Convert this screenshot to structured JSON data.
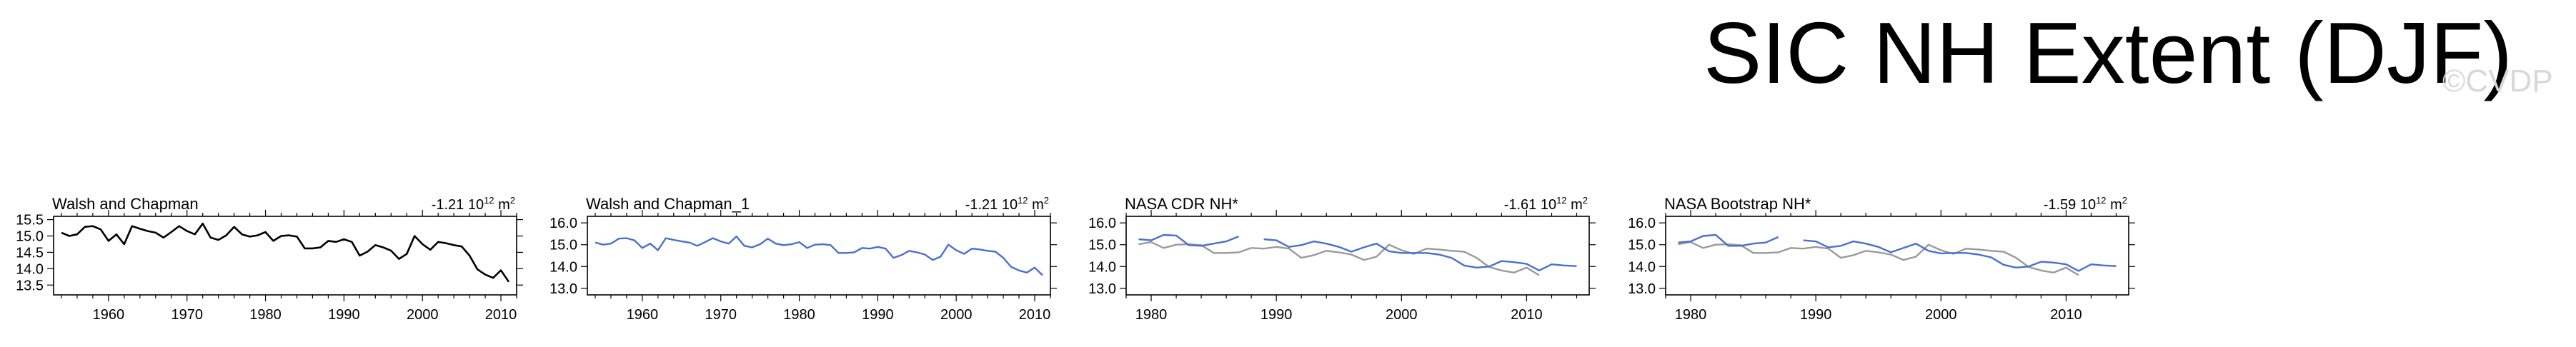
{
  "figure": {
    "title": "SIC NH Extent (DJF)",
    "watermark": "©CVDP"
  },
  "colors": {
    "black": "#000000",
    "blue": "#4a6fd0",
    "gray": "#9a9a9a",
    "watermark": "#d8d8d8"
  },
  "chart_data": [
    {
      "type": "line",
      "title": "Walsh and Chapman",
      "trend_value": "-1.21 10",
      "trend_exp": "12",
      "trend_units": "m",
      "trend_units_exp": "2",
      "xlim": [
        1953,
        2012
      ],
      "ylim": [
        13.2,
        15.6
      ],
      "xticks": [
        1960,
        1970,
        1980,
        1990,
        2000,
        2010
      ],
      "yticks": [
        "15.5",
        "15.0",
        "14.5",
        "14.0",
        "13.5"
      ],
      "ytick_values": [
        15.5,
        15.0,
        14.5,
        14.0,
        13.5
      ],
      "series": [
        {
          "name": "Walsh and Chapman",
          "color": "black",
          "x": [
            1954,
            1955,
            1956,
            1957,
            1958,
            1959,
            1960,
            1961,
            1962,
            1963,
            1964,
            1965,
            1966,
            1967,
            1968,
            1969,
            1970,
            1971,
            1972,
            1973,
            1974,
            1975,
            1976,
            1977,
            1978,
            1979,
            1980,
            1981,
            1982,
            1983,
            1984,
            1985,
            1986,
            1987,
            1988,
            1989,
            1990,
            1991,
            1992,
            1993,
            1994,
            1995,
            1996,
            1997,
            1998,
            1999,
            2000,
            2001,
            2002,
            2003,
            2004,
            2005,
            2006,
            2007,
            2008,
            2009,
            2010,
            2011
          ],
          "y": [
            15.1,
            15.0,
            15.05,
            15.28,
            15.3,
            15.2,
            14.85,
            15.05,
            14.75,
            15.3,
            15.22,
            15.15,
            15.1,
            14.95,
            15.12,
            15.3,
            15.15,
            15.05,
            15.38,
            14.95,
            14.88,
            15.02,
            15.28,
            15.05,
            14.98,
            15.02,
            15.12,
            14.85,
            15.0,
            15.02,
            14.98,
            14.62,
            14.62,
            14.65,
            14.85,
            14.82,
            14.9,
            14.82,
            14.4,
            14.52,
            14.72,
            14.65,
            14.55,
            14.3,
            14.45,
            15.0,
            14.75,
            14.58,
            14.82,
            14.78,
            14.72,
            14.68,
            14.4,
            13.98,
            13.82,
            13.72,
            13.95,
            13.6
          ]
        }
      ]
    },
    {
      "type": "line",
      "title": "Walsh and Chapman_1",
      "trend_value": "-1.21 10",
      "trend_exp": "12",
      "trend_units": "m",
      "trend_units_exp": "2",
      "xlim": [
        1953,
        2012
      ],
      "ylim": [
        12.7,
        16.3
      ],
      "xticks": [
        1960,
        1970,
        1980,
        1990,
        2000,
        2010
      ],
      "yticks": [
        "16.0",
        "15.0",
        "14.0",
        "13.0"
      ],
      "ytick_values": [
        16.0,
        15.0,
        14.0,
        13.0
      ],
      "series": [
        {
          "name": "Walsh and Chapman_1",
          "color": "blue",
          "x": [
            1954,
            1955,
            1956,
            1957,
            1958,
            1959,
            1960,
            1961,
            1962,
            1963,
            1964,
            1965,
            1966,
            1967,
            1968,
            1969,
            1970,
            1971,
            1972,
            1973,
            1974,
            1975,
            1976,
            1977,
            1978,
            1979,
            1980,
            1981,
            1982,
            1983,
            1984,
            1985,
            1986,
            1987,
            1988,
            1989,
            1990,
            1991,
            1992,
            1993,
            1994,
            1995,
            1996,
            1997,
            1998,
            1999,
            2000,
            2001,
            2002,
            2003,
            2004,
            2005,
            2006,
            2007,
            2008,
            2009,
            2010,
            2011
          ],
          "y": [
            15.1,
            15.0,
            15.05,
            15.28,
            15.3,
            15.2,
            14.85,
            15.05,
            14.75,
            15.3,
            15.22,
            15.15,
            15.1,
            14.95,
            15.12,
            15.3,
            15.15,
            15.05,
            15.38,
            14.95,
            14.88,
            15.02,
            15.28,
            15.05,
            14.98,
            15.02,
            15.12,
            14.85,
            15.0,
            15.02,
            14.98,
            14.62,
            14.62,
            14.65,
            14.85,
            14.82,
            14.9,
            14.82,
            14.4,
            14.52,
            14.72,
            14.65,
            14.55,
            14.3,
            14.45,
            15.0,
            14.75,
            14.58,
            14.82,
            14.78,
            14.72,
            14.68,
            14.4,
            13.98,
            13.82,
            13.72,
            13.95,
            13.6
          ]
        }
      ]
    },
    {
      "type": "line",
      "title": "NASA CDR NH*",
      "trend_value": "-1.61 10",
      "trend_exp": "12",
      "trend_units": "m",
      "trend_units_exp": "2",
      "xlim": [
        1978,
        2015
      ],
      "ylim": [
        12.7,
        16.3
      ],
      "xticks": [
        1980,
        1990,
        2000,
        2010
      ],
      "yticks": [
        "16.0",
        "15.0",
        "14.0",
        "13.0"
      ],
      "ytick_values": [
        16.0,
        15.0,
        14.0,
        13.0
      ],
      "series": [
        {
          "name": "NASA CDR NH*",
          "color": "blue",
          "x": [
            1979,
            1980,
            1981,
            1982,
            1983,
            1984,
            1985,
            1986,
            1987,
            null,
            1989,
            1990,
            1991,
            1992,
            1993,
            1994,
            1995,
            1996,
            1997,
            1998,
            1999,
            2000,
            2001,
            2002,
            2003,
            2004,
            2005,
            2006,
            2007,
            2008,
            2009,
            2010,
            2011,
            2012,
            2013,
            2014
          ],
          "y": [
            15.25,
            15.2,
            15.45,
            15.42,
            14.98,
            14.95,
            15.05,
            15.15,
            15.38,
            null,
            15.25,
            15.2,
            14.9,
            14.98,
            15.15,
            15.05,
            14.9,
            14.68,
            14.88,
            15.05,
            14.7,
            14.62,
            14.62,
            14.62,
            14.55,
            14.4,
            14.05,
            13.95,
            14.0,
            14.25,
            14.2,
            14.12,
            13.82,
            14.1,
            14.05,
            14.02
          ]
        },
        {
          "name": "Walsh and Chapman",
          "color": "gray",
          "x": [
            1979,
            1980,
            1981,
            1982,
            1983,
            1984,
            1985,
            1986,
            1987,
            1988,
            1989,
            1990,
            1991,
            1992,
            1993,
            1994,
            1995,
            1996,
            1997,
            1998,
            1999,
            2000,
            2001,
            2002,
            2003,
            2004,
            2005,
            2006,
            2007,
            2008,
            2009,
            2010,
            2011
          ],
          "y": [
            15.02,
            15.12,
            14.85,
            15.0,
            15.02,
            14.98,
            14.62,
            14.62,
            14.65,
            14.85,
            14.82,
            14.9,
            14.82,
            14.4,
            14.52,
            14.72,
            14.65,
            14.55,
            14.3,
            14.45,
            15.0,
            14.75,
            14.58,
            14.82,
            14.78,
            14.72,
            14.68,
            14.4,
            13.98,
            13.82,
            13.72,
            13.95,
            13.6
          ]
        }
      ]
    },
    {
      "type": "line",
      "title": "NASA Bootstrap NH*",
      "trend_value": "-1.59 10",
      "trend_exp": "12",
      "trend_units": "m",
      "trend_units_exp": "2",
      "xlim": [
        1978,
        2015
      ],
      "ylim": [
        12.7,
        16.3
      ],
      "xticks": [
        1980,
        1990,
        2000,
        2010
      ],
      "yticks": [
        "16.0",
        "15.0",
        "14.0",
        "13.0"
      ],
      "ytick_values": [
        16.0,
        15.0,
        14.0,
        13.0
      ],
      "series": [
        {
          "name": "NASA Bootstrap NH*",
          "color": "blue",
          "x": [
            1979,
            1980,
            1981,
            1982,
            1983,
            1984,
            1985,
            1986,
            1987,
            null,
            1989,
            1990,
            1991,
            1992,
            1993,
            1994,
            1995,
            1996,
            1997,
            1998,
            1999,
            2000,
            2001,
            2002,
            2003,
            2004,
            2005,
            2006,
            2007,
            2008,
            2009,
            2010,
            2011,
            2012,
            2013,
            2014
          ],
          "y": [
            15.1,
            15.15,
            15.4,
            15.45,
            14.95,
            14.95,
            15.05,
            15.1,
            15.35,
            null,
            15.2,
            15.15,
            14.88,
            14.95,
            15.15,
            15.05,
            14.9,
            14.65,
            14.85,
            15.05,
            14.72,
            14.6,
            14.62,
            14.62,
            14.55,
            14.42,
            14.08,
            13.95,
            14.0,
            14.22,
            14.18,
            14.1,
            13.8,
            14.1,
            14.05,
            14.02
          ]
        },
        {
          "name": "Walsh and Chapman",
          "color": "gray",
          "x": [
            1979,
            1980,
            1981,
            1982,
            1983,
            1984,
            1985,
            1986,
            1987,
            1988,
            1989,
            1990,
            1991,
            1992,
            1993,
            1994,
            1995,
            1996,
            1997,
            1998,
            1999,
            2000,
            2001,
            2002,
            2003,
            2004,
            2005,
            2006,
            2007,
            2008,
            2009,
            2010,
            2011
          ],
          "y": [
            15.02,
            15.12,
            14.85,
            15.0,
            15.02,
            14.98,
            14.62,
            14.62,
            14.65,
            14.85,
            14.82,
            14.9,
            14.82,
            14.4,
            14.52,
            14.72,
            14.65,
            14.55,
            14.3,
            14.45,
            15.0,
            14.75,
            14.58,
            14.82,
            14.78,
            14.72,
            14.68,
            14.4,
            13.98,
            13.82,
            13.72,
            13.95,
            13.6
          ]
        }
      ]
    }
  ]
}
